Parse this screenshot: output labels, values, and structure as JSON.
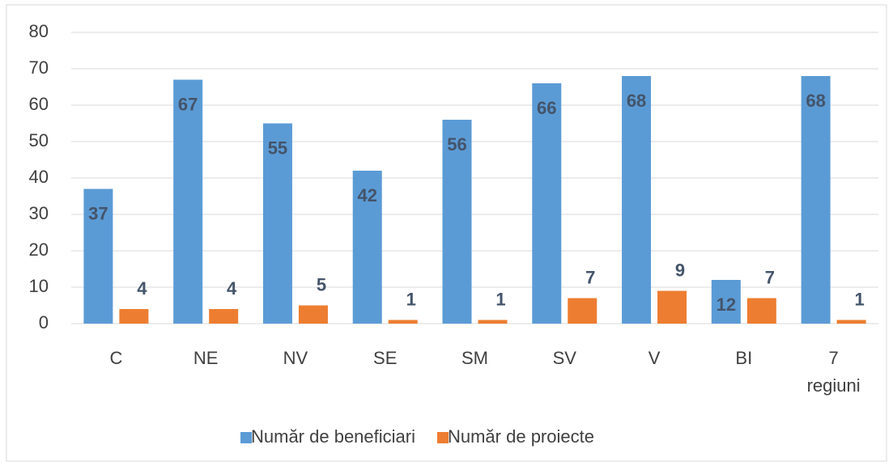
{
  "chart_data": {
    "type": "bar",
    "categories": [
      "C",
      "NE",
      "NV",
      "SE",
      "SM",
      "SV",
      "V",
      "BI",
      "7 regiuni"
    ],
    "series": [
      {
        "name": "Număr de beneficiari",
        "color": "#5b9bd5",
        "values": [
          37,
          67,
          55,
          42,
          56,
          66,
          68,
          12,
          68
        ]
      },
      {
        "name": "Număr de proiecte",
        "color": "#ed7d31",
        "values": [
          4,
          4,
          5,
          1,
          1,
          7,
          9,
          7,
          1
        ]
      }
    ],
    "ylim": [
      0,
      80
    ],
    "yticks": [
      0,
      10,
      20,
      30,
      40,
      50,
      60,
      70,
      80
    ],
    "grid": true,
    "legend": "bottom"
  }
}
